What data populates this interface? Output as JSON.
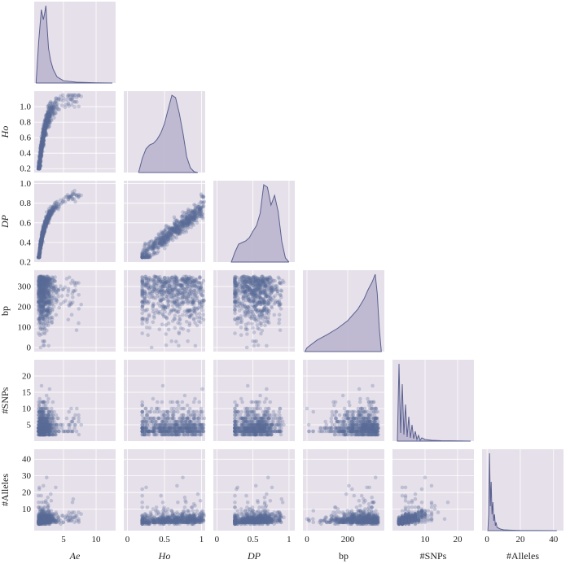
{
  "chart_data": {
    "type": "scatter",
    "variables": [
      {
        "key": "Ae",
        "label": "Ae",
        "italic": true,
        "range": [
          0.5,
          13
        ],
        "ticks": [
          5,
          10
        ]
      },
      {
        "key": "Ho",
        "label": "Ho",
        "italic": true,
        "range": [
          0.15,
          1.2
        ],
        "ticks": [
          0.2,
          0.4,
          0.6,
          0.8,
          1.0
        ]
      },
      {
        "key": "DP",
        "label": "DP",
        "italic": true,
        "range": [
          0.2,
          1.03
        ],
        "ticks": [
          0.2,
          0.4,
          0.6,
          0.8,
          1.0
        ]
      },
      {
        "key": "bp",
        "label": "bp",
        "italic": false,
        "range": [
          -20,
          380
        ],
        "ticks": [
          0,
          100,
          200,
          300
        ]
      },
      {
        "key": "SNPs",
        "label": "#SNPs",
        "italic": false,
        "range": [
          0,
          25
        ],
        "ticks": [
          5,
          10,
          15,
          20
        ]
      },
      {
        "key": "Alleles",
        "label": "#Alleles",
        "italic": false,
        "range": [
          -3,
          46
        ],
        "ticks": [
          0,
          10,
          20,
          30,
          40
        ]
      }
    ],
    "x_tick_labels": {
      "Ae": [
        "5",
        "10"
      ],
      "Ho": [
        "0",
        "0.5",
        "1"
      ],
      "DP": [
        "0",
        "0.5",
        "1"
      ],
      "bp": [
        "0",
        "200"
      ],
      "SNPs": [
        "10",
        "20"
      ],
      "Alleles": [
        "0",
        "20",
        "40"
      ]
    },
    "x_tick_values": {
      "Ae": [
        5,
        10
      ],
      "Ho": [
        0,
        0.5,
        1
      ],
      "DP": [
        0,
        0.5,
        1
      ],
      "bp": [
        0,
        200
      ],
      "SNPs": [
        10,
        20
      ],
      "Alleles": [
        0,
        20,
        40
      ]
    },
    "x_ranges": {
      "Ae": [
        0.5,
        13
      ],
      "Ho": [
        -0.05,
        1.05
      ],
      "DP": [
        -0.05,
        1.08
      ],
      "bp": [
        -20,
        380
      ],
      "SNPs": [
        0,
        25
      ],
      "Alleles": [
        -3,
        46
      ]
    },
    "y_tick_labels": {
      "Ho": [
        "0.2",
        "0.4",
        "0.6",
        "0.8",
        "1.0"
      ],
      "DP": [
        "0.2",
        "0.4",
        "0.6",
        "0.8",
        "1.0"
      ],
      "bp": [
        "0",
        "100",
        "200",
        "300"
      ],
      "SNPs": [
        "5",
        "10",
        "15",
        "20"
      ],
      "Alleles": [
        "10",
        "20",
        "30",
        "40"
      ]
    },
    "y_tick_values": {
      "Ho": [
        0.2,
        0.4,
        0.6,
        0.8,
        1.0
      ],
      "DP": [
        0.2,
        0.4,
        0.6,
        0.8,
        1.0
      ],
      "bp": [
        0,
        100,
        200,
        300
      ],
      "SNPs": [
        5,
        10,
        15,
        20
      ],
      "Alleles": [
        10,
        20,
        30,
        40
      ]
    },
    "diagonal_kde": {
      "Ae": {
        "x": [
          0.8,
          1.2,
          1.6,
          1.9,
          2.1,
          2.3,
          2.5,
          2.7,
          3.0,
          3.4,
          4.0,
          5,
          7,
          10,
          12.5
        ],
        "density": [
          0.02,
          0.55,
          0.95,
          0.82,
          0.9,
          1.0,
          0.7,
          0.45,
          0.3,
          0.18,
          0.08,
          0.03,
          0.01,
          0.003,
          0.0
        ]
      },
      "Ho": {
        "x": [
          0.15,
          0.2,
          0.25,
          0.3,
          0.35,
          0.4,
          0.45,
          0.5,
          0.55,
          0.6,
          0.65,
          0.7,
          0.75,
          0.8,
          0.85,
          0.9,
          0.95
        ],
        "density": [
          0.0,
          0.18,
          0.3,
          0.35,
          0.37,
          0.42,
          0.5,
          0.62,
          0.8,
          0.98,
          0.95,
          0.75,
          0.5,
          0.2,
          0.06,
          0.01,
          0.0
        ]
      },
      "DP": {
        "x": [
          0.2,
          0.25,
          0.3,
          0.35,
          0.4,
          0.45,
          0.5,
          0.55,
          0.6,
          0.65,
          0.7,
          0.75,
          0.8,
          0.85,
          0.9,
          0.95,
          1.0
        ],
        "density": [
          0.0,
          0.12,
          0.22,
          0.24,
          0.26,
          0.3,
          0.38,
          0.45,
          0.6,
          0.95,
          0.92,
          0.7,
          0.82,
          0.62,
          0.25,
          0.05,
          0.0
        ]
      },
      "bp": {
        "x": [
          -10,
          0,
          50,
          100,
          150,
          200,
          250,
          280,
          300,
          320,
          335,
          345,
          355,
          365
        ],
        "density": [
          0.0,
          0.05,
          0.15,
          0.22,
          0.3,
          0.4,
          0.55,
          0.68,
          0.8,
          0.9,
          1.0,
          0.75,
          0.3,
          0.0
        ]
      },
      "SNPs": {
        "x": [
          1.5,
          2,
          2.5,
          3,
          3.5,
          4,
          4.5,
          5,
          5.5,
          6,
          6.5,
          7,
          7.5,
          8,
          8.5,
          9,
          10,
          11,
          12,
          15,
          20,
          24
        ],
        "density": [
          0.0,
          0.95,
          0.1,
          0.7,
          0.08,
          0.45,
          0.05,
          0.3,
          0.04,
          0.2,
          0.03,
          0.12,
          0.02,
          0.07,
          0.01,
          0.04,
          0.02,
          0.015,
          0.01,
          0.005,
          0.002,
          0.0
        ]
      },
      "Alleles": {
        "x": [
          0.5,
          1,
          1.5,
          2,
          2.5,
          3,
          3.5,
          4,
          4.5,
          5,
          5.5,
          6,
          7,
          8,
          10,
          15,
          20,
          30,
          42
        ],
        "density": [
          0.0,
          0.2,
          0.95,
          0.3,
          0.6,
          0.2,
          0.35,
          0.12,
          0.2,
          0.06,
          0.1,
          0.04,
          0.03,
          0.02,
          0.01,
          0.005,
          0.002,
          0.001,
          0.0
        ]
      }
    }
  }
}
